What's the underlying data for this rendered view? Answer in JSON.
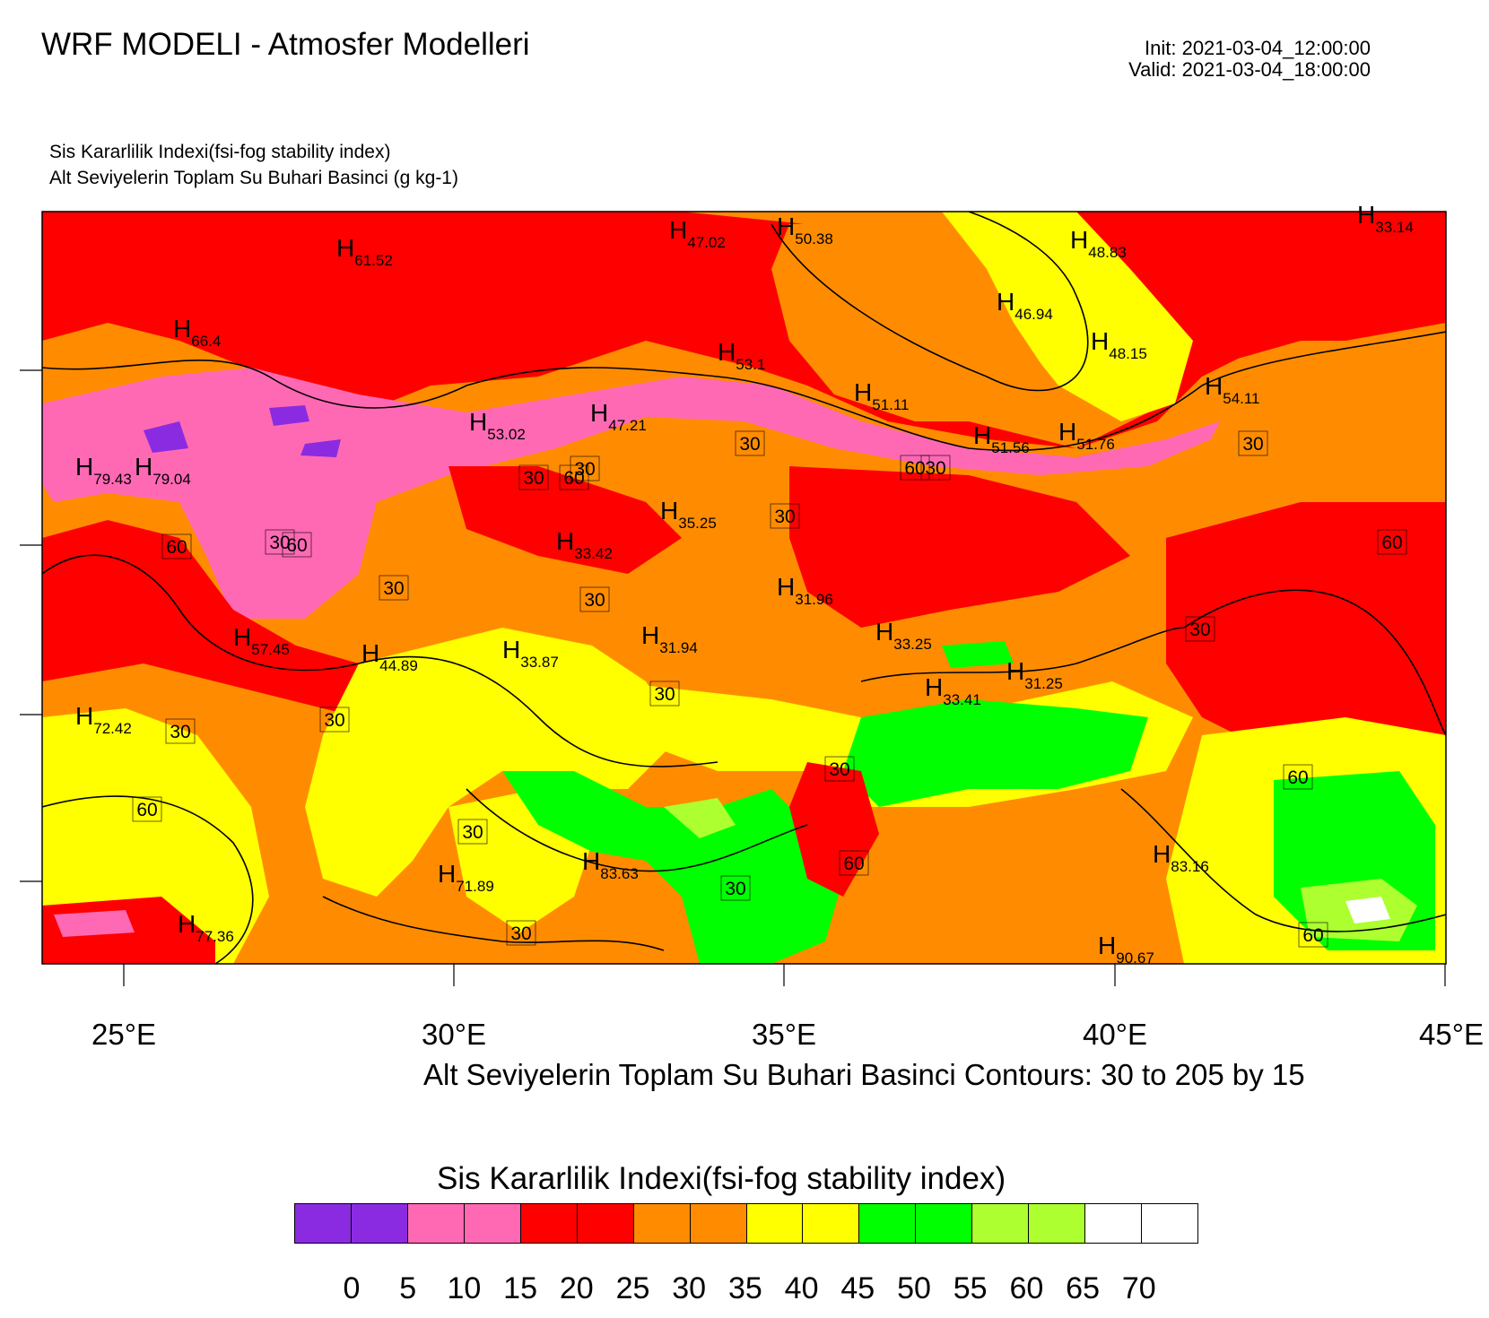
{
  "header": {
    "title": "WRF MODELI - Atmosfer Modelleri",
    "init": "Init: 2021-03-04_12:00:00",
    "valid": "Valid: 2021-03-04_18:00:00"
  },
  "subtitle": {
    "line1": "Sis Kararlilik Indexi(fsi-fog stability index)",
    "line2": "Alt Seviyelerin Toplam Su Buhari Basinci   (g kg-1)"
  },
  "map": {
    "x_axis_labels": [
      "25°E",
      "30°E",
      "35°E",
      "40°E",
      "45°E"
    ],
    "contour_caption": "Alt Seviyelerin Toplam Su Buhari Basinci Contours: 30 to 205 by 15",
    "high_labels": [
      {
        "h": "H",
        "v": "61.52"
      },
      {
        "h": "H",
        "v": "47.02"
      },
      {
        "h": "H",
        "v": "50.38"
      },
      {
        "h": "H",
        "v": "48.83"
      },
      {
        "h": "H",
        "v": "33.14"
      },
      {
        "h": "H",
        "v": "46.94"
      },
      {
        "h": "H",
        "v": "66.4"
      },
      {
        "h": "H",
        "v": "48.15"
      },
      {
        "h": "H",
        "v": "53.1"
      },
      {
        "h": "H",
        "v": "51.11"
      },
      {
        "h": "H",
        "v": "54.11"
      },
      {
        "h": "H",
        "v": "53.02"
      },
      {
        "h": "H",
        "v": "47.21"
      },
      {
        "h": "H",
        "v": "51.56"
      },
      {
        "h": "H",
        "v": "51.76"
      },
      {
        "h": "H",
        "v": "79.43"
      },
      {
        "h": "H",
        "v": "79.04"
      },
      {
        "h": "H",
        "v": "35.25"
      },
      {
        "h": "H",
        "v": "33.42"
      },
      {
        "h": "H",
        "v": "31.96"
      },
      {
        "h": "H",
        "v": "57.45"
      },
      {
        "h": "H",
        "v": "44.89"
      },
      {
        "h": "H",
        "v": "33.87"
      },
      {
        "h": "H",
        "v": "31.94"
      },
      {
        "h": "H",
        "v": "33.25"
      },
      {
        "h": "H",
        "v": "31.25"
      },
      {
        "h": "H",
        "v": "33.41"
      },
      {
        "h": "H",
        "v": "72.42"
      },
      {
        "h": "H",
        "v": "83.63"
      },
      {
        "h": "H",
        "v": "71.89"
      },
      {
        "h": "H",
        "v": "83.16"
      },
      {
        "h": "H",
        "v": "77.36"
      },
      {
        "h": "H",
        "v": "90.67"
      }
    ],
    "contour_labels": [
      "30",
      "30",
      "30",
      "30",
      "30",
      "30",
      "60",
      "30",
      "30",
      "30",
      "30",
      "30",
      "30",
      "30",
      "60",
      "30",
      "30",
      "60",
      "60",
      "30",
      "30",
      "60",
      "60",
      "60",
      "60",
      "60"
    ]
  },
  "legend": {
    "title": "Sis Kararlilik Indexi(fsi-fog stability index)",
    "colors": [
      "#8A2BE2",
      "#8A2BE2",
      "#FF69B4",
      "#FF69B4",
      "#FF0000",
      "#FF0000",
      "#FF8C00",
      "#FF8C00",
      "#FFFF00",
      "#FFFF00",
      "#00FF00",
      "#00FF00",
      "#ADFF2F",
      "#ADFF2F",
      "#FFFFFF",
      "#FFFFFF"
    ],
    "labels": [
      "0",
      "5",
      "10",
      "15",
      "20",
      "25",
      "30",
      "35",
      "40",
      "45",
      "50",
      "55",
      "60",
      "65",
      "70"
    ]
  }
}
